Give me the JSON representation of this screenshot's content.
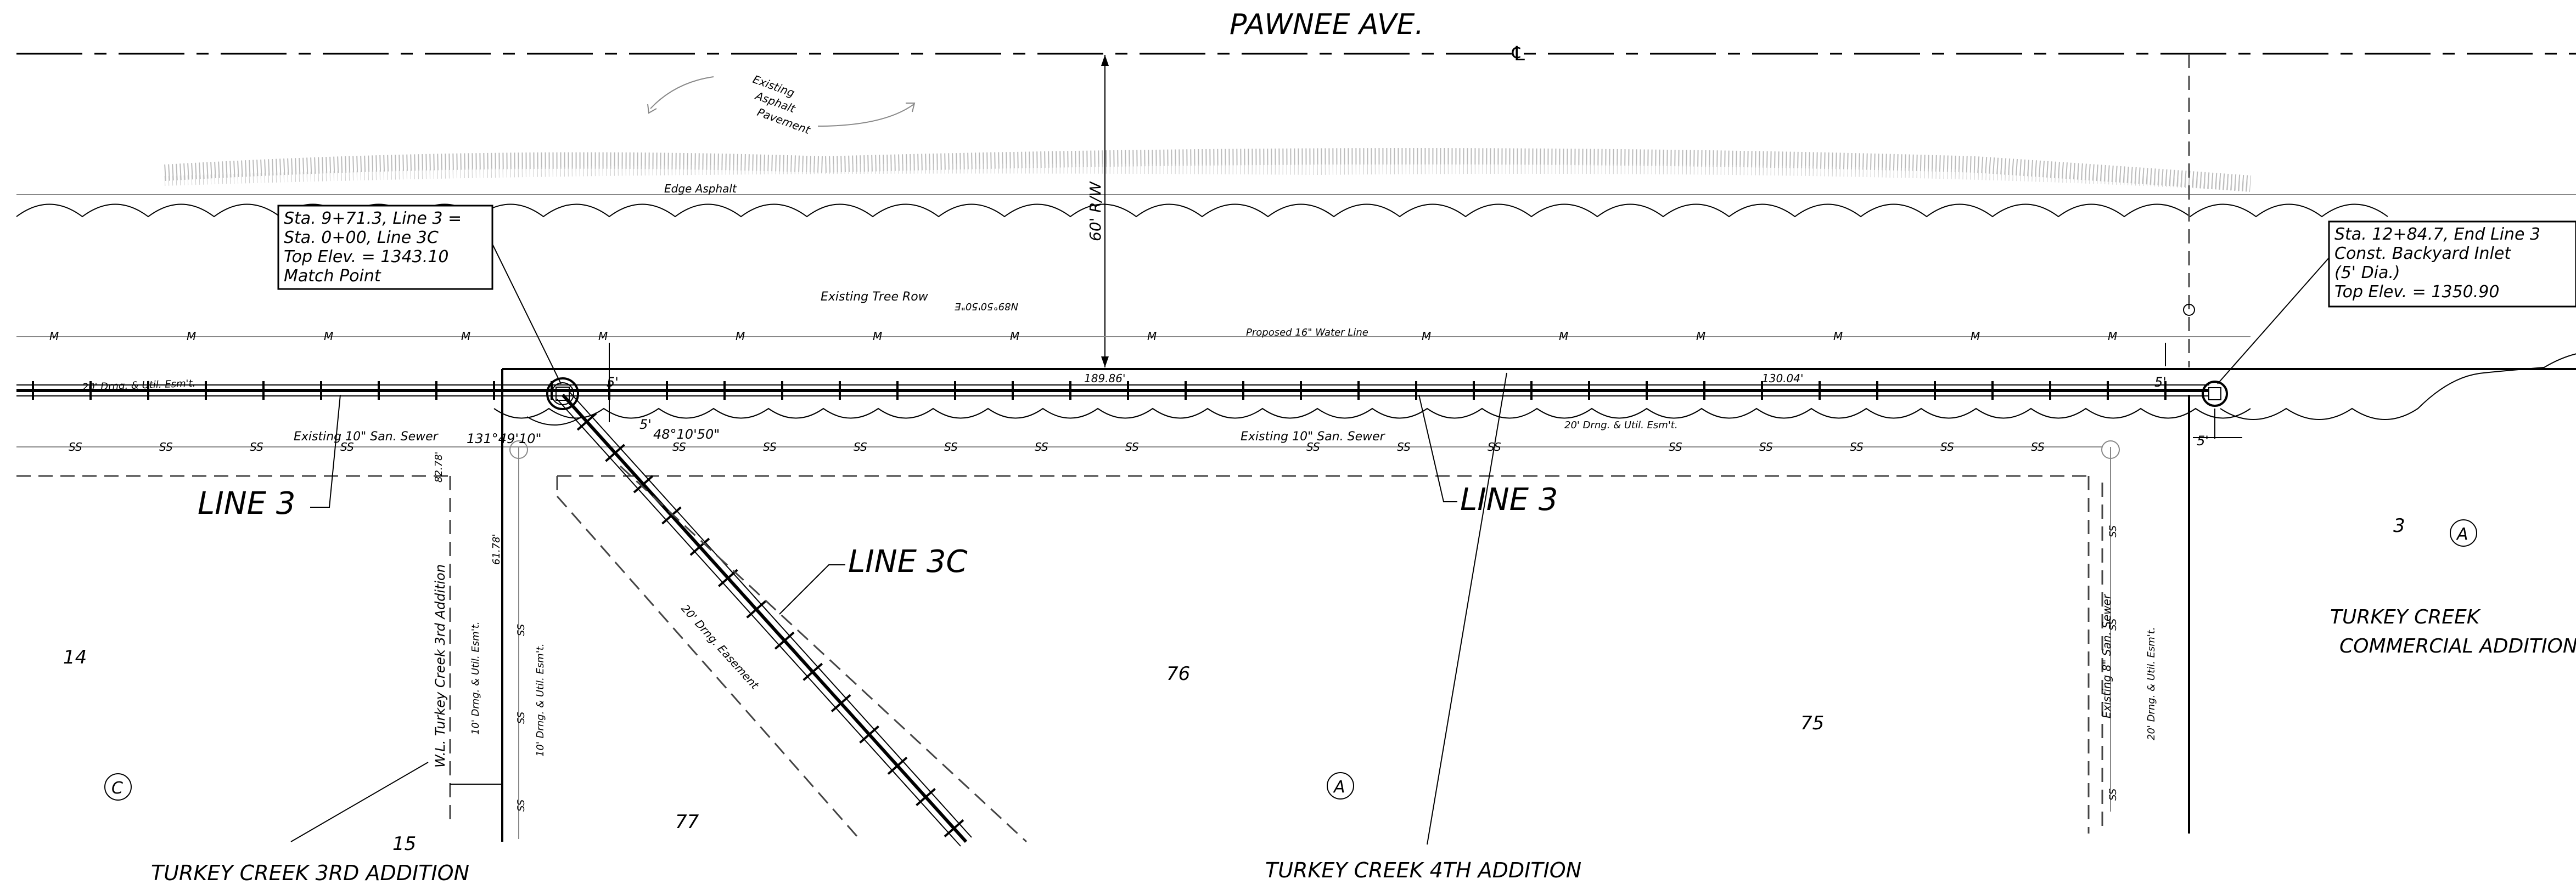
{
  "street": {
    "name": "PAWNEE AVE.",
    "centerline_symbol": "℄"
  },
  "labels": {
    "existing_asphalt": [
      "Existing",
      "Asphalt",
      "Pavement"
    ],
    "edge_asphalt": "Edge Asphalt",
    "right_of_way": "60' R/W",
    "tree_row": "Existing Tree Row",
    "bearing": "N89°50'50\"E",
    "water_line": "Proposed 16\" Water Line",
    "water_mark": "M",
    "sewer_mark": "SS",
    "dim_left_seg": "189.86'",
    "dim_right_seg": "130.04'",
    "easement_20_left": "20' Drng. & Util. Esm't.",
    "easement_20_mid": "20' Drng. & Util. Esm't.",
    "existing_sewer_left": "Existing 10\" San. Sewer",
    "existing_sewer_mid": "Existing 10\" San. Sewer",
    "angle_1": "131°49'10\"",
    "angle_2": "48°10'50\"",
    "dim_5_a": "5'",
    "dim_5_b": "5'",
    "dim_5_c": "5'",
    "dim_5_d": "5'",
    "dim_5_e": "5'",
    "dim_82": "82.78'",
    "dim_61": "61.78'",
    "wl_label": "W.L. Turkey Creek 3rd Addition",
    "easement_10_a": "10' Drng. & Util. Esm't.",
    "easement_10_b": "10' Drng. & Util. Esm't.",
    "drng_easement": "20' Drng. Easement",
    "existing_8_sewer": "Existing 8\" San. Sewer",
    "easement_20_right": "20' Drng. & Util. Esm't.",
    "line3_left": "LINE 3",
    "line3_mid": "LINE 3",
    "line3c": "LINE 3C"
  },
  "callouts": {
    "left": [
      "Sta. 9+71.3, Line 3 =",
      "Sta. 0+00, Line 3C",
      "Top Elev. = 1343.10",
      "Match Point"
    ],
    "right": [
      "Sta. 12+84.7, End Line 3",
      "Const. Backyard Inlet",
      "(5' Dia.)",
      "Top Elev. = 1350.90"
    ]
  },
  "lots": {
    "l14": "14",
    "l15": "15",
    "l77": "77",
    "l76": "76",
    "l75": "75",
    "l3": "3"
  },
  "blocks": {
    "c": "C",
    "a_mid": "A",
    "a_right": "A"
  },
  "subdivisions": {
    "third": "TURKEY CREEK 3RD ADDITION",
    "fourth": "TURKEY CREEK 4TH ADDITION",
    "commercial_1": "TURKEY CREEK",
    "commercial_2": "COMMERCIAL ADDITION"
  },
  "colors": {
    "line": "#000000",
    "existing": "#888888",
    "background": "#ffffff"
  }
}
